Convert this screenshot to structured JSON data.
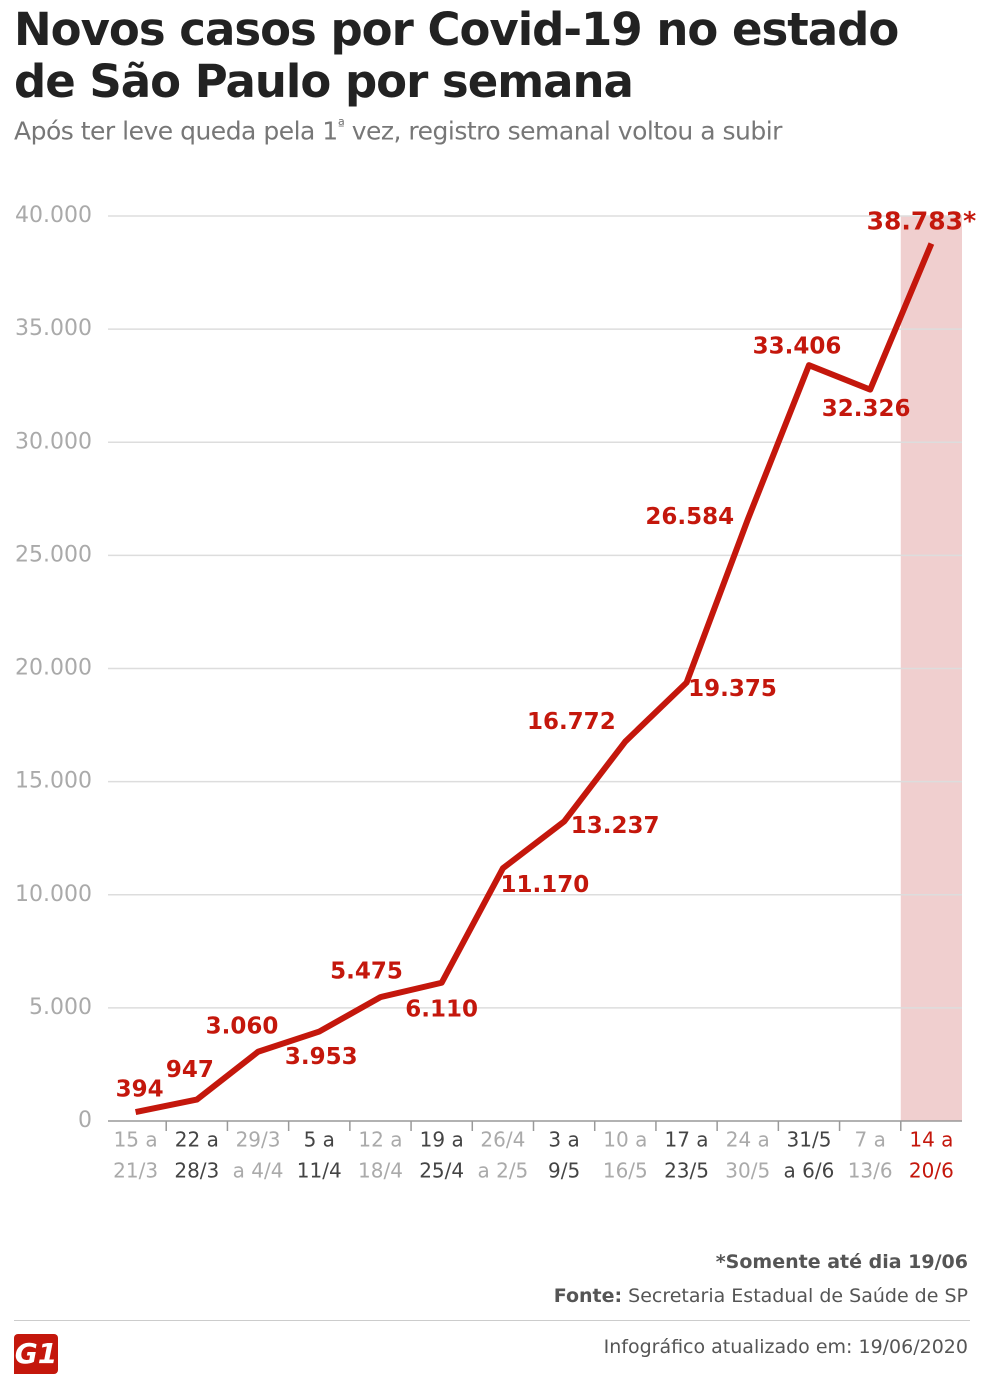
{
  "chart_data": {
    "type": "line",
    "title": "Novos casos por Covid-19 no estado de São Paulo por semana",
    "subtitle": "Após ter leve queda pela 1ª vez, registro semanal voltou a subir",
    "categories": [
      [
        "15 a",
        "21/3"
      ],
      [
        "22 a",
        "28/3"
      ],
      [
        "29/3",
        "a 4/4"
      ],
      [
        "5 a",
        "11/4"
      ],
      [
        "12 a",
        "18/4"
      ],
      [
        "19 a",
        "25/4"
      ],
      [
        "26/4",
        "a 2/5"
      ],
      [
        "3 a",
        "9/5"
      ],
      [
        "10 a",
        "16/5"
      ],
      [
        "17 a",
        "23/5"
      ],
      [
        "24 a",
        "30/5"
      ],
      [
        "31/5",
        "a 6/6"
      ],
      [
        "7 a",
        "13/6"
      ],
      [
        "14 a",
        "20/6"
      ]
    ],
    "values": [
      394,
      947,
      3060,
      3953,
      5475,
      6110,
      11170,
      13237,
      16772,
      19375,
      26584,
      33406,
      32326,
      38783
    ],
    "value_labels": [
      "394",
      "947",
      "3.060",
      "3.953",
      "5.475",
      "6.110",
      "11.170",
      "13.237",
      "16.772",
      "19.375",
      "26.584",
      "33.406",
      "32.326",
      "38.783*"
    ],
    "color": "#c4170c",
    "highlight_color": "#f0cfcf",
    "ylim": [
      0,
      40000
    ],
    "yticks": [
      0,
      {
        "value": 5000,
        "label": "5.000"
      },
      {
        "value": 10000,
        "label": "10.000"
      },
      {
        "value": 15000,
        "label": "15.000"
      },
      {
        "value": 20000,
        "label": "20.000"
      },
      {
        "value": 25000,
        "label": "25.000"
      },
      {
        "value": 30000,
        "label": "30.000"
      },
      {
        "value": 35000,
        "label": "35.000"
      },
      {
        "value": 40000,
        "label": "40.000"
      }
    ],
    "grid": true,
    "note": "*Somente até dia 19/06",
    "source_label": "Fonte:",
    "source": "Secretaria Estadual de Saúde de SP",
    "updated": "Infográfico atualizado em: 19/06/2020",
    "logo": "G1"
  }
}
